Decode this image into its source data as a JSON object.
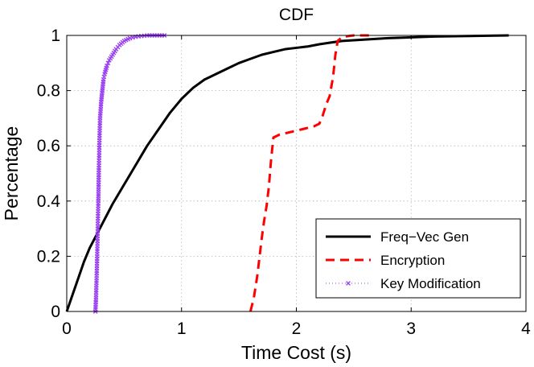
{
  "chart_data": {
    "type": "line",
    "title": "CDF",
    "xlabel": "Time Cost (s)",
    "ylabel": "Percentage",
    "xlim": [
      0,
      4
    ],
    "ylim": [
      0,
      1
    ],
    "xticks": [
      "0",
      "1",
      "2",
      "3",
      "4"
    ],
    "yticks": [
      "0",
      "0.2",
      "0.4",
      "0.6",
      "0.8",
      "1"
    ],
    "grid": true,
    "legend_position": "bottom-right",
    "series": [
      {
        "name": "Freq−Vec Gen",
        "color": "#000000",
        "style": "solid",
        "x": [
          0,
          0.05,
          0.1,
          0.15,
          0.2,
          0.25,
          0.3,
          0.4,
          0.5,
          0.6,
          0.7,
          0.8,
          0.9,
          1.0,
          1.1,
          1.2,
          1.3,
          1.4,
          1.5,
          1.6,
          1.7,
          1.8,
          1.9,
          2.0,
          2.1,
          2.2,
          2.3,
          2.4,
          2.6,
          2.8,
          3.0,
          3.2,
          3.5,
          3.85
        ],
        "y": [
          0,
          0.06,
          0.12,
          0.18,
          0.23,
          0.27,
          0.31,
          0.39,
          0.46,
          0.53,
          0.6,
          0.66,
          0.72,
          0.77,
          0.81,
          0.84,
          0.86,
          0.88,
          0.9,
          0.915,
          0.93,
          0.94,
          0.95,
          0.955,
          0.96,
          0.968,
          0.974,
          0.98,
          0.985,
          0.99,
          0.993,
          0.996,
          0.998,
          1.0
        ]
      },
      {
        "name": "Encryption",
        "color": "#ff0000",
        "style": "dashed",
        "x": [
          1.6,
          1.63,
          1.66,
          1.68,
          1.7,
          1.72,
          1.74,
          1.76,
          1.78,
          1.8,
          1.85,
          1.95,
          2.05,
          2.15,
          2.2,
          2.23,
          2.26,
          2.29,
          2.32,
          2.34,
          2.36,
          2.4,
          2.5,
          2.65
        ],
        "y": [
          0,
          0.05,
          0.13,
          0.2,
          0.27,
          0.33,
          0.38,
          0.45,
          0.55,
          0.63,
          0.64,
          0.65,
          0.66,
          0.67,
          0.68,
          0.71,
          0.75,
          0.78,
          0.85,
          0.93,
          0.98,
          0.995,
          1.0,
          1.0
        ]
      },
      {
        "name": "Key Modification",
        "color": "#9a41f2",
        "style": "dotted-x",
        "x": [
          0.25,
          0.255,
          0.26,
          0.265,
          0.27,
          0.275,
          0.28,
          0.285,
          0.29,
          0.3,
          0.31,
          0.32,
          0.33,
          0.35,
          0.37,
          0.4,
          0.43,
          0.46,
          0.5,
          0.55,
          0.6,
          0.65,
          0.7,
          0.85
        ],
        "y": [
          0,
          0.05,
          0.12,
          0.2,
          0.3,
          0.4,
          0.52,
          0.62,
          0.7,
          0.76,
          0.8,
          0.84,
          0.86,
          0.89,
          0.91,
          0.93,
          0.95,
          0.965,
          0.98,
          0.99,
          0.995,
          0.998,
          1.0,
          1.0
        ]
      }
    ]
  }
}
